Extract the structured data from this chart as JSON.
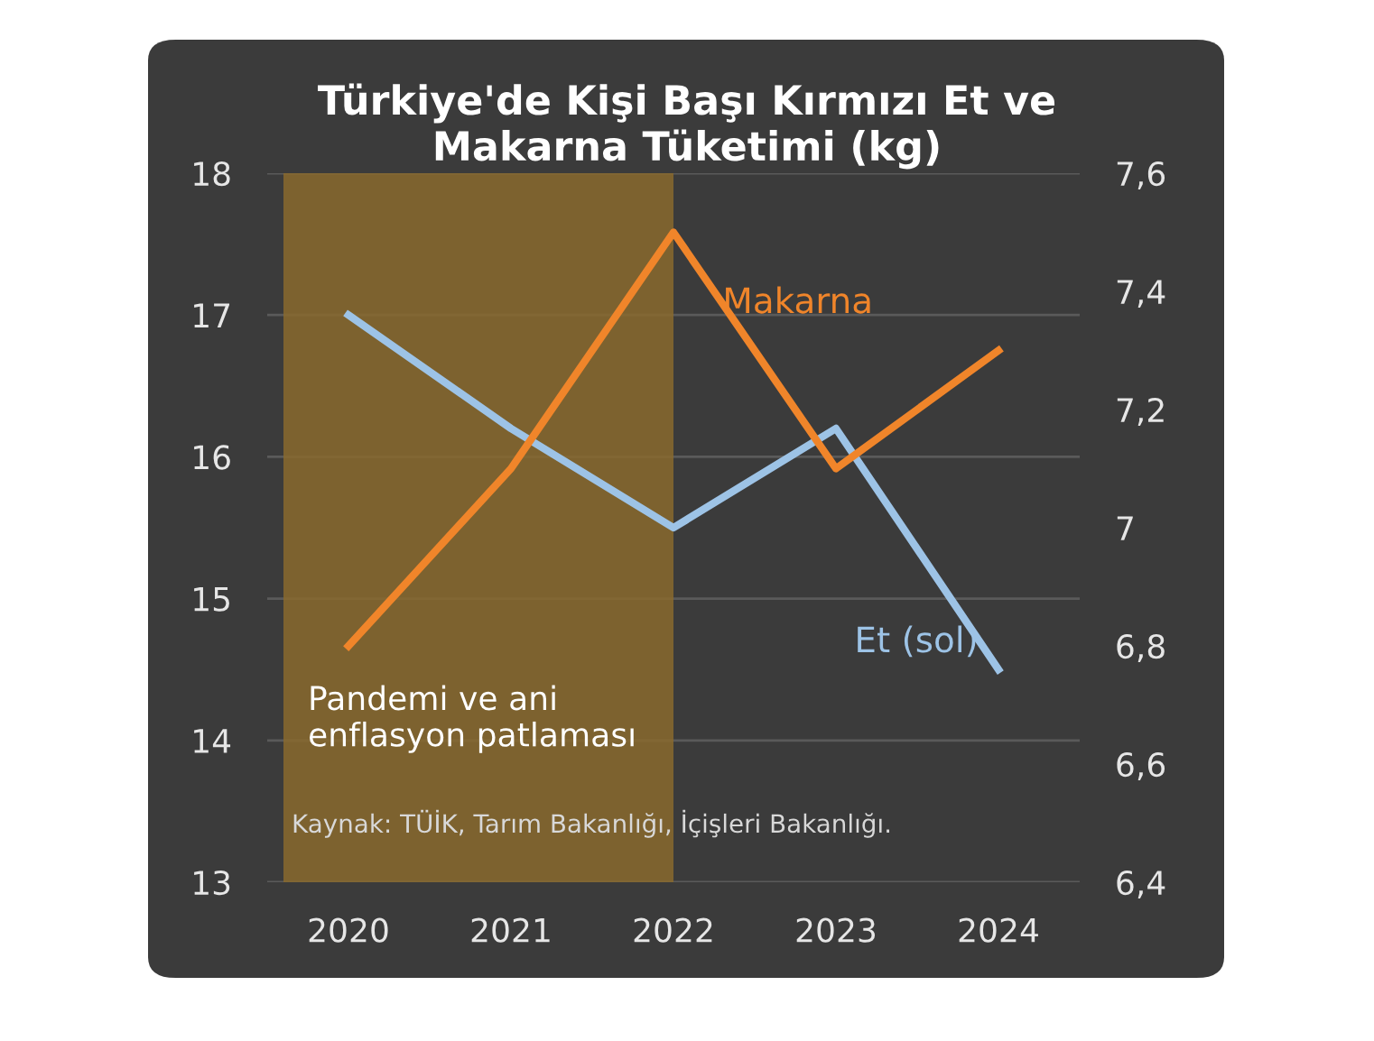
{
  "chart_data": {
    "type": "line",
    "title": "Türkiye'de Kişi Başı Kırmızı Et ve\nMakarna Tüketimi (kg)",
    "x": [
      2020,
      2021,
      2022,
      2023,
      2024
    ],
    "xlim": [
      2019.5,
      2024.5
    ],
    "xticks": [
      2020,
      2021,
      2022,
      2023,
      2024
    ],
    "ylim": [
      13,
      18
    ],
    "yticks": [
      13,
      14,
      15,
      16,
      17,
      18
    ],
    "y2lim": [
      6.4,
      7.6
    ],
    "y2ticks": [
      {
        "value": 6.4,
        "label": "6,4"
      },
      {
        "value": 6.6,
        "label": "6,6"
      },
      {
        "value": 6.8,
        "label": "6,8"
      },
      7,
      {
        "value": 7.2,
        "label": "7,2"
      },
      {
        "value": 7.4,
        "label": "7,4"
      },
      {
        "value": 7.6,
        "label": "7,6"
      }
    ],
    "series": [
      {
        "name": "Et (sol)",
        "color": "#9dc3e6",
        "values": [
          17,
          16.2,
          15.5,
          16.2,
          14.5
        ]
      },
      {
        "name": "Makarna",
        "color": "#f0852a",
        "axis": "y2",
        "values": [
          6.8,
          7.1,
          7.5,
          7.1,
          7.3
        ]
      }
    ],
    "bands": [
      {
        "axis": "x",
        "from": 2019.6,
        "to": 2022,
        "label": "Pandemi ve ani\nenflasyon patlaması",
        "color": "#8a6a2e"
      }
    ],
    "annotations": [
      "Kaynak: TÜİK, Tarım Bakanlığı, İçişleri Bakanlığı."
    ],
    "grid": "y",
    "legend": false,
    "marker": "none",
    "line_style": "solid"
  }
}
